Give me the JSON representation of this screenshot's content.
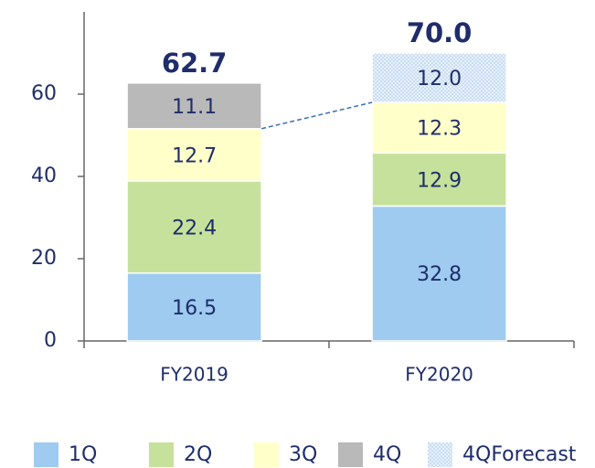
{
  "chart_data": {
    "type": "bar",
    "stacked": true,
    "categories": [
      "FY2019",
      "FY2020"
    ],
    "series": [
      {
        "name": "1Q",
        "color": "#9ecbef",
        "values": [
          16.5,
          32.8
        ]
      },
      {
        "name": "2Q",
        "color": "#c6e19b",
        "values": [
          22.4,
          12.9
        ]
      },
      {
        "name": "3Q",
        "color": "#ffffc9",
        "values": [
          12.7,
          12.3
        ]
      },
      {
        "name": "4Q",
        "color": "#b9b9b9",
        "values": [
          11.1,
          null
        ]
      },
      {
        "name": "4QForecast",
        "color": "#dbe9f7",
        "pattern": "dots",
        "values": [
          null,
          12.0
        ],
        "value_labels": [
          null,
          "12.0"
        ]
      }
    ],
    "totals": [
      62.7,
      70.0
    ],
    "total_labels": [
      "62.7",
      "70.0"
    ],
    "ylim": [
      0,
      80
    ],
    "yticks": [
      0,
      20,
      40,
      60
    ],
    "grid": false
  }
}
